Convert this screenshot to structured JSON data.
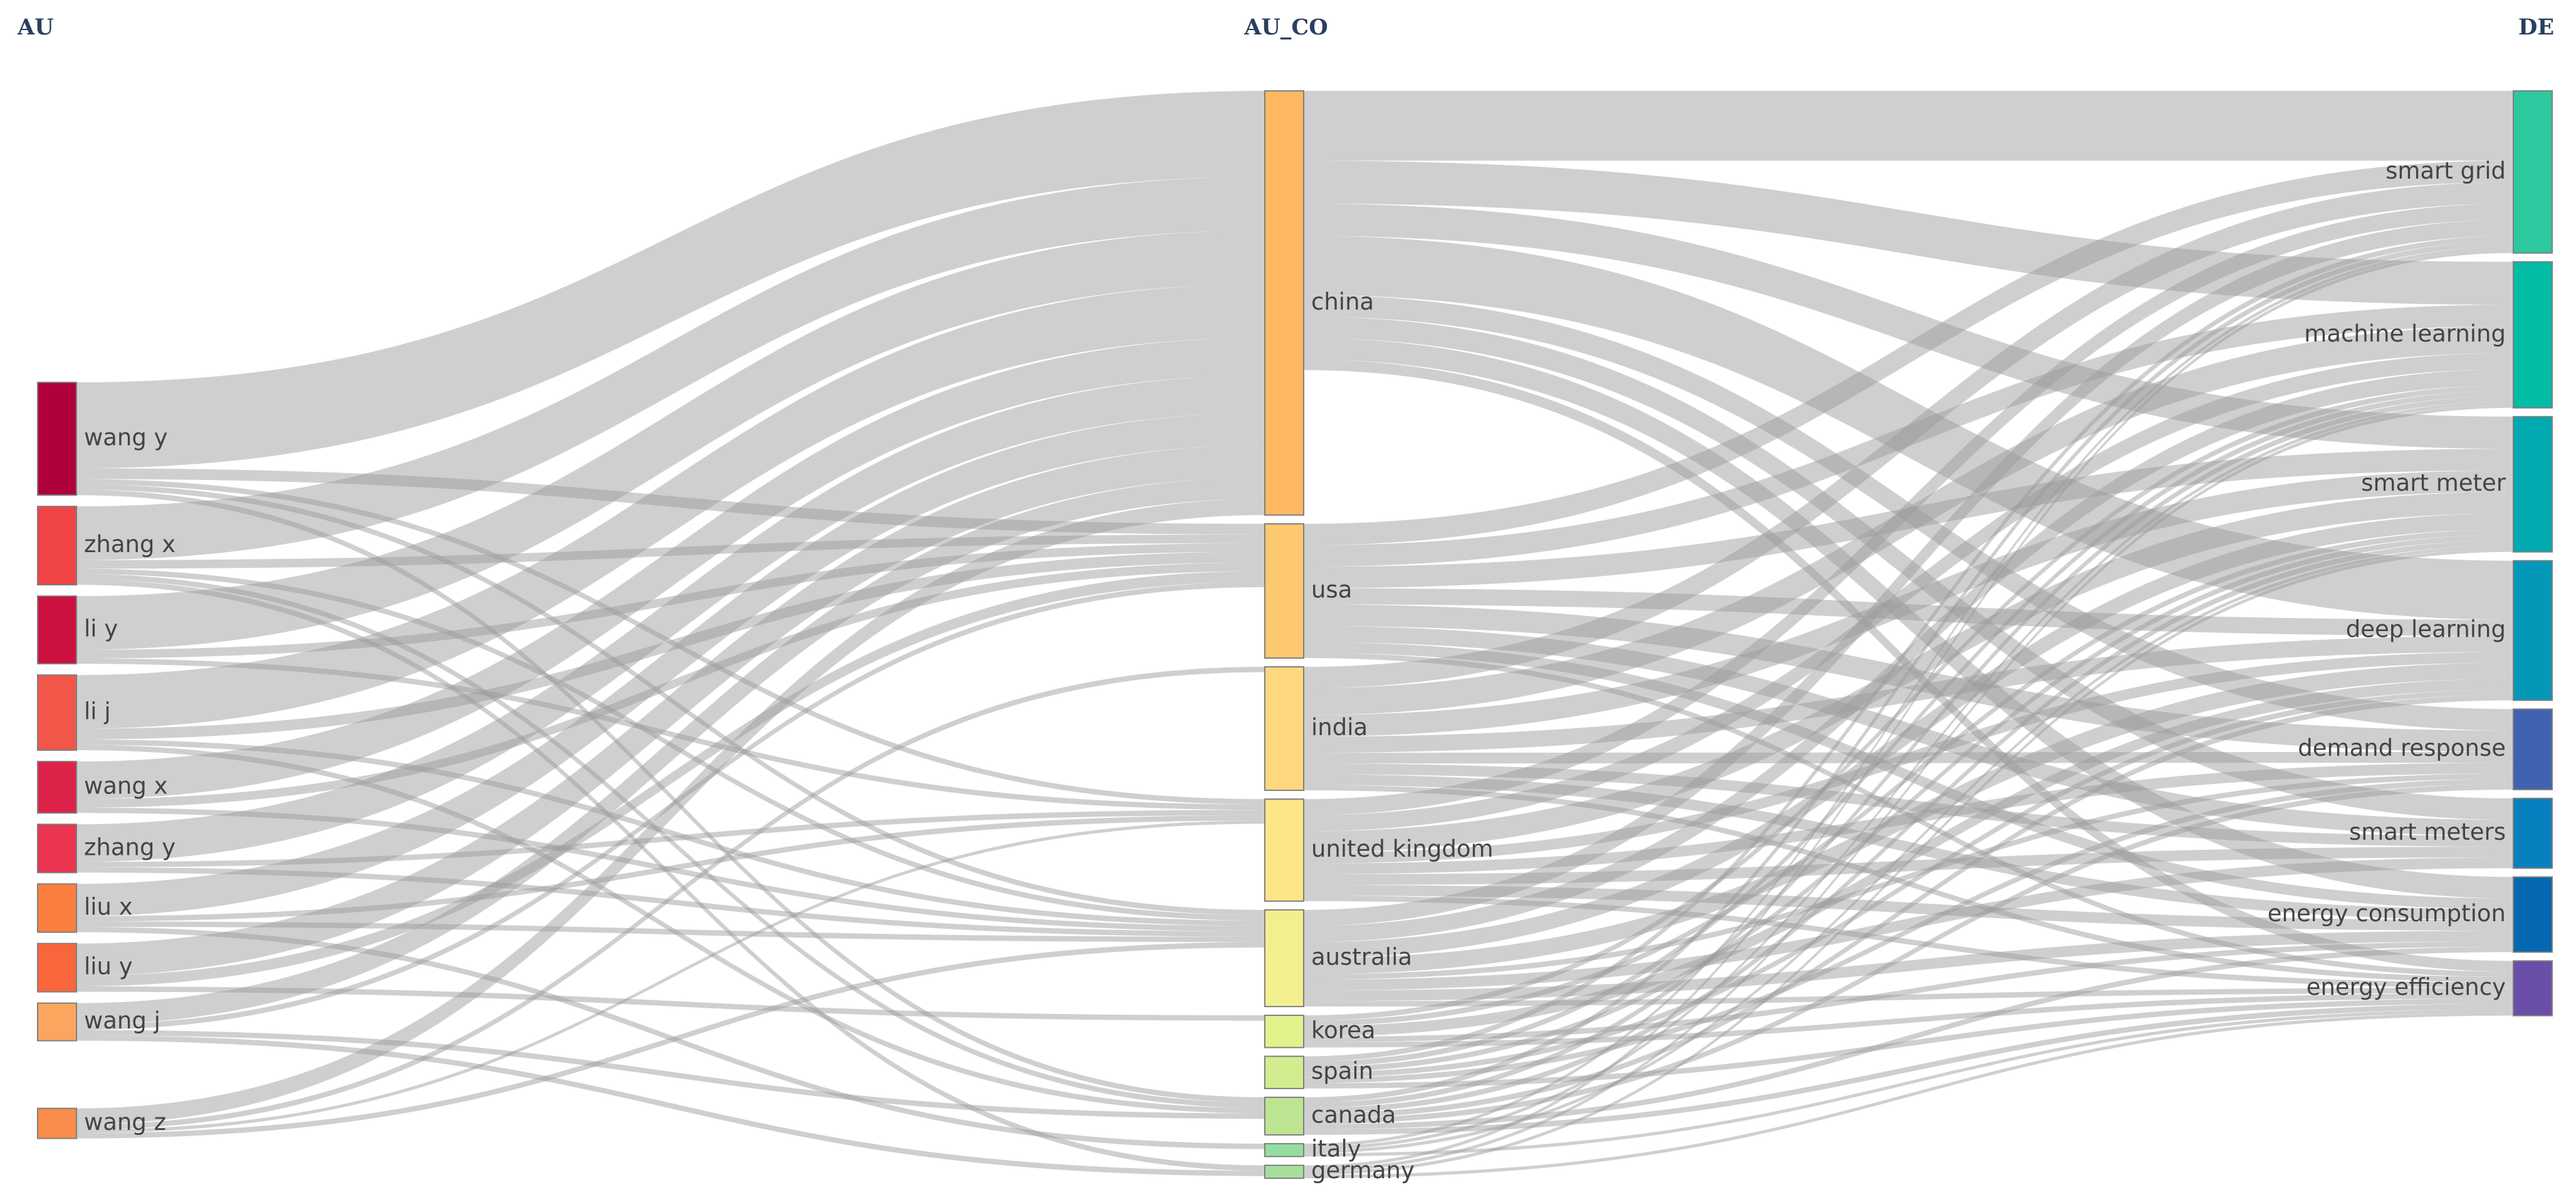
{
  "headers": {
    "left": "AU",
    "middle": "AU_CO",
    "right": "DE"
  },
  "colors": {
    "flow": "#9a9a9a",
    "node_border": "#7f7f7f",
    "header": "#2a3f5f",
    "label": "#444444"
  },
  "nodes": {
    "authors": [
      {
        "id": "wang_y",
        "label": "wang y",
        "color": "#b0003c"
      },
      {
        "id": "zhang_x",
        "label": "zhang x",
        "color": "#f04447"
      },
      {
        "id": "li_y",
        "label": "li y",
        "color": "#cc1140"
      },
      {
        "id": "li_j",
        "label": "li j",
        "color": "#f15649"
      },
      {
        "id": "wang_x",
        "label": "wang x",
        "color": "#dc2248"
      },
      {
        "id": "zhang_y",
        "label": "zhang y",
        "color": "#ea3450"
      },
      {
        "id": "liu_x",
        "label": "liu x",
        "color": "#fa7f3e"
      },
      {
        "id": "liu_y",
        "label": "liu y",
        "color": "#f9663c"
      },
      {
        "id": "wang_j",
        "label": "wang j",
        "color": "#fba65e"
      },
      {
        "id": "wang_z",
        "label": "wang z",
        "color": "#f98c4a"
      }
    ],
    "countries": [
      {
        "id": "china",
        "label": "china",
        "color": "#fdb861"
      },
      {
        "id": "usa",
        "label": "usa",
        "color": "#fdc86f"
      },
      {
        "id": "india",
        "label": "india",
        "color": "#fed77f"
      },
      {
        "id": "united_kingdom",
        "label": "united kingdom",
        "color": "#fde588"
      },
      {
        "id": "australia",
        "label": "australia",
        "color": "#f2f08e"
      },
      {
        "id": "korea",
        "label": "korea",
        "color": "#e3f18c"
      },
      {
        "id": "spain",
        "label": "spain",
        "color": "#d1ed8e"
      },
      {
        "id": "canada",
        "label": "canada",
        "color": "#bde592"
      },
      {
        "id": "italy",
        "label": "italy",
        "color": "#93dea0"
      },
      {
        "id": "germany",
        "label": "germany",
        "color": "#a6e09a"
      }
    ],
    "keywords": [
      {
        "id": "smart_grid",
        "label": "smart grid",
        "color": "#2dc7a0"
      },
      {
        "id": "machine_learning",
        "label": "machine learning",
        "color": "#02bca6"
      },
      {
        "id": "smart_meter",
        "label": "smart meter",
        "color": "#02aab1"
      },
      {
        "id": "deep_learning",
        "label": "deep learning",
        "color": "#0498b8"
      },
      {
        "id": "demand_response",
        "label": "demand response",
        "color": "#4162b0"
      },
      {
        "id": "smart_meters",
        "label": "smart meters",
        "color": "#0880c0"
      },
      {
        "id": "energy_consumption",
        "label": "energy consumption",
        "color": "#0668b0"
      },
      {
        "id": "energy_efficiency",
        "label": "energy efficiency",
        "color": "#6a4ea8"
      }
    ]
  },
  "links": [
    {
      "source": "wang_y",
      "target": "china",
      "value": 8
    },
    {
      "source": "wang_y",
      "target": "usa",
      "value": 1
    },
    {
      "source": "wang_y",
      "target": "united_kingdom",
      "value": 0.5
    },
    {
      "source": "wang_y",
      "target": "australia",
      "value": 0.5
    },
    {
      "source": "wang_y",
      "target": "canada",
      "value": 0.5
    },
    {
      "source": "zhang_x",
      "target": "china",
      "value": 5
    },
    {
      "source": "zhang_x",
      "target": "usa",
      "value": 0.8
    },
    {
      "source": "zhang_x",
      "target": "australia",
      "value": 0.5
    },
    {
      "source": "zhang_x",
      "target": "canada",
      "value": 0.5
    },
    {
      "source": "zhang_x",
      "target": "germany",
      "value": 0.5
    },
    {
      "source": "li_y",
      "target": "china",
      "value": 5
    },
    {
      "source": "li_y",
      "target": "usa",
      "value": 0.8
    },
    {
      "source": "li_y",
      "target": "united_kingdom",
      "value": 0.5
    },
    {
      "source": "li_j",
      "target": "china",
      "value": 5
    },
    {
      "source": "li_j",
      "target": "usa",
      "value": 1
    },
    {
      "source": "li_j",
      "target": "australia",
      "value": 0.5
    },
    {
      "source": "li_j",
      "target": "canada",
      "value": 0.5
    },
    {
      "source": "wang_x",
      "target": "china",
      "value": 3.5
    },
    {
      "source": "wang_x",
      "target": "usa",
      "value": 0.8
    },
    {
      "source": "wang_x",
      "target": "australia",
      "value": 0.5
    },
    {
      "source": "zhang_y",
      "target": "china",
      "value": 3.5
    },
    {
      "source": "zhang_y",
      "target": "united_kingdom",
      "value": 0.5
    },
    {
      "source": "zhang_y",
      "target": "australia",
      "value": 0.5
    },
    {
      "source": "liu_x",
      "target": "china",
      "value": 3
    },
    {
      "source": "liu_x",
      "target": "united_kingdom",
      "value": 0.5
    },
    {
      "source": "liu_x",
      "target": "australia",
      "value": 0.5
    },
    {
      "source": "liu_x",
      "target": "italy",
      "value": 0.5
    },
    {
      "source": "liu_y",
      "target": "china",
      "value": 3
    },
    {
      "source": "liu_y",
      "target": "usa",
      "value": 1
    },
    {
      "source": "liu_y",
      "target": "korea",
      "value": 0.5
    },
    {
      "source": "wang_j",
      "target": "china",
      "value": 2
    },
    {
      "source": "wang_j",
      "target": "usa",
      "value": 0.5
    },
    {
      "source": "wang_j",
      "target": "canada",
      "value": 0.5
    },
    {
      "source": "wang_j",
      "target": "germany",
      "value": 0.5
    },
    {
      "source": "wang_z",
      "target": "china",
      "value": 1.5
    },
    {
      "source": "wang_z",
      "target": "india",
      "value": 0.5
    },
    {
      "source": "wang_z",
      "target": "united_kingdom",
      "value": 0.3
    },
    {
      "source": "wang_z",
      "target": "australia",
      "value": 0.5
    },
    {
      "source": "china",
      "target": "smart_grid",
      "value": 6.5
    },
    {
      "source": "china",
      "target": "machine_learning",
      "value": 4
    },
    {
      "source": "china",
      "target": "smart_meter",
      "value": 3
    },
    {
      "source": "china",
      "target": "deep_learning",
      "value": 5.5
    },
    {
      "source": "china",
      "target": "demand_response",
      "value": 2
    },
    {
      "source": "china",
      "target": "smart_meters",
      "value": 2
    },
    {
      "source": "china",
      "target": "energy_consumption",
      "value": 2
    },
    {
      "source": "china",
      "target": "energy_efficiency",
      "value": 1
    },
    {
      "source": "usa",
      "target": "smart_grid",
      "value": 2
    },
    {
      "source": "usa",
      "target": "machine_learning",
      "value": 2
    },
    {
      "source": "usa",
      "target": "smart_meter",
      "value": 2
    },
    {
      "source": "usa",
      "target": "deep_learning",
      "value": 1.5
    },
    {
      "source": "usa",
      "target": "demand_response",
      "value": 2
    },
    {
      "source": "usa",
      "target": "smart_meters",
      "value": 1.5
    },
    {
      "source": "usa",
      "target": "energy_consumption",
      "value": 1
    },
    {
      "source": "usa",
      "target": "energy_efficiency",
      "value": 0.5
    },
    {
      "source": "india",
      "target": "smart_grid",
      "value": 2
    },
    {
      "source": "india",
      "target": "machine_learning",
      "value": 2.5
    },
    {
      "source": "india",
      "target": "smart_meter",
      "value": 2
    },
    {
      "source": "india",
      "target": "deep_learning",
      "value": 1.5
    },
    {
      "source": "india",
      "target": "demand_response",
      "value": 1
    },
    {
      "source": "india",
      "target": "smart_meters",
      "value": 1
    },
    {
      "source": "india",
      "target": "energy_consumption",
      "value": 1
    },
    {
      "source": "india",
      "target": "energy_efficiency",
      "value": 0.5
    },
    {
      "source": "united_kingdom",
      "target": "smart_grid",
      "value": 1.5
    },
    {
      "source": "united_kingdom",
      "target": "machine_learning",
      "value": 1.5
    },
    {
      "source": "united_kingdom",
      "target": "smart_meter",
      "value": 2
    },
    {
      "source": "united_kingdom",
      "target": "deep_learning",
      "value": 1
    },
    {
      "source": "united_kingdom",
      "target": "demand_response",
      "value": 1
    },
    {
      "source": "united_kingdom",
      "target": "smart_meters",
      "value": 1
    },
    {
      "source": "united_kingdom",
      "target": "energy_consumption",
      "value": 1
    },
    {
      "source": "united_kingdom",
      "target": "energy_efficiency",
      "value": 0.5
    },
    {
      "source": "australia",
      "target": "smart_grid",
      "value": 1.5
    },
    {
      "source": "australia",
      "target": "machine_learning",
      "value": 1.5
    },
    {
      "source": "australia",
      "target": "smart_meter",
      "value": 1.5
    },
    {
      "source": "australia",
      "target": "deep_learning",
      "value": 1.5
    },
    {
      "source": "australia",
      "target": "demand_response",
      "value": 0.5
    },
    {
      "source": "australia",
      "target": "smart_meters",
      "value": 1
    },
    {
      "source": "australia",
      "target": "energy_consumption",
      "value": 1
    },
    {
      "source": "australia",
      "target": "energy_efficiency",
      "value": 0.5
    },
    {
      "source": "korea",
      "target": "machine_learning",
      "value": 0.5
    },
    {
      "source": "korea",
      "target": "smart_meter",
      "value": 0.5
    },
    {
      "source": "korea",
      "target": "deep_learning",
      "value": 1
    },
    {
      "source": "korea",
      "target": "energy_consumption",
      "value": 0.5
    },
    {
      "source": "korea",
      "target": "energy_efficiency",
      "value": 0.5
    },
    {
      "source": "spain",
      "target": "smart_grid",
      "value": 0.5
    },
    {
      "source": "spain",
      "target": "machine_learning",
      "value": 0.5
    },
    {
      "source": "spain",
      "target": "smart_meter",
      "value": 0.5
    },
    {
      "source": "spain",
      "target": "deep_learning",
      "value": 0.5
    },
    {
      "source": "spain",
      "target": "demand_response",
      "value": 0.5
    },
    {
      "source": "spain",
      "target": "energy_efficiency",
      "value": 0.5
    },
    {
      "source": "canada",
      "target": "smart_grid",
      "value": 0.5
    },
    {
      "source": "canada",
      "target": "machine_learning",
      "value": 0.5
    },
    {
      "source": "canada",
      "target": "smart_meter",
      "value": 0.5
    },
    {
      "source": "canada",
      "target": "deep_learning",
      "value": 0.5
    },
    {
      "source": "canada",
      "target": "demand_response",
      "value": 0.5
    },
    {
      "source": "canada",
      "target": "energy_consumption",
      "value": 0.5
    },
    {
      "source": "canada",
      "target": "energy_efficiency",
      "value": 0.5
    },
    {
      "source": "italy",
      "target": "smart_grid",
      "value": 0.3
    },
    {
      "source": "italy",
      "target": "machine_learning",
      "value": 0.3
    },
    {
      "source": "italy",
      "target": "smart_meter",
      "value": 0.3
    },
    {
      "source": "italy",
      "target": "energy_efficiency",
      "value": 0.3
    },
    {
      "source": "germany",
      "target": "smart_grid",
      "value": 0.3
    },
    {
      "source": "germany",
      "target": "machine_learning",
      "value": 0.3
    },
    {
      "source": "germany",
      "target": "smart_meter",
      "value": 0.3
    },
    {
      "source": "germany",
      "target": "energy_efficiency",
      "value": 0.3
    }
  ]
}
